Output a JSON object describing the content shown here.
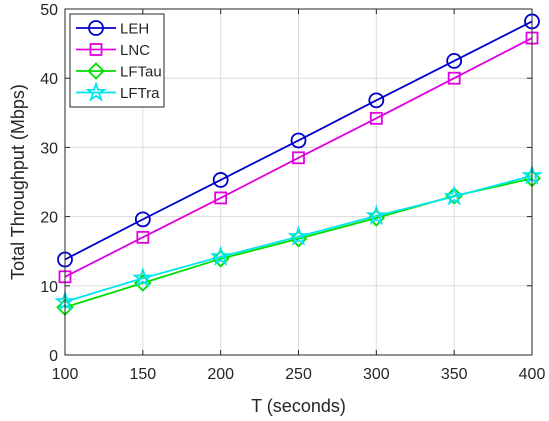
{
  "chart_data": {
    "type": "line",
    "title": "",
    "xlabel": "T (seconds)",
    "ylabel": "Total Throughput (Mbps)",
    "x": [
      100,
      150,
      200,
      250,
      300,
      350,
      400
    ],
    "xlim": [
      100,
      400
    ],
    "ylim": [
      0,
      50
    ],
    "xticks": [
      100,
      150,
      200,
      250,
      300,
      350,
      400
    ],
    "yticks": [
      0,
      10,
      20,
      30,
      40,
      50
    ],
    "grid": true,
    "legend_position": "top-left",
    "series": [
      {
        "name": "LEH",
        "color": "#0000cc",
        "marker": "circle",
        "values": [
          13.8,
          19.6,
          25.3,
          31.0,
          36.8,
          42.5,
          48.2
        ]
      },
      {
        "name": "LNC",
        "color": "#e000e0",
        "marker": "square",
        "values": [
          11.3,
          17.0,
          22.7,
          28.5,
          34.2,
          40.0,
          45.8
        ]
      },
      {
        "name": "LFTau",
        "color": "#00dd00",
        "marker": "diamond",
        "values": [
          6.9,
          10.4,
          13.9,
          16.8,
          19.8,
          23.0,
          25.5
        ]
      },
      {
        "name": "LFTra",
        "color": "#00e5ee",
        "marker": "pentagram",
        "values": [
          7.7,
          11.1,
          14.2,
          17.1,
          20.1,
          22.9,
          25.9
        ]
      }
    ]
  }
}
